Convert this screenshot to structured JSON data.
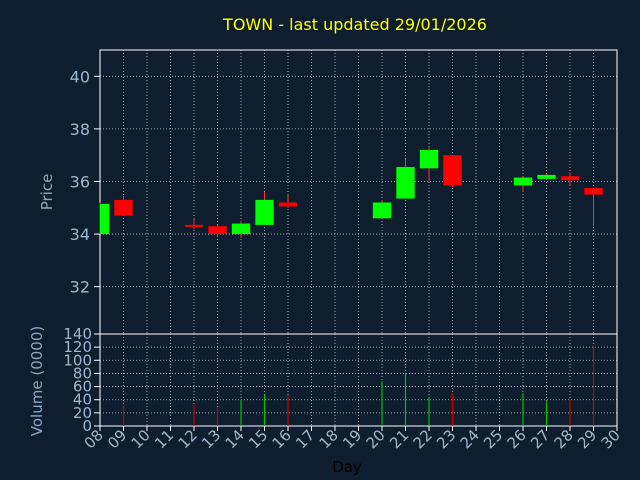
{
  "colors": {
    "background": "#0f1e2e",
    "title": "#ffff00",
    "axis_label": "#8aa6c4",
    "tick_label": "#9fb6d0",
    "axis_line": "#ffffff",
    "grid": "#ffffff",
    "up": "#00ff00",
    "down": "#ff0000",
    "volume_up": "#00c000",
    "volume_down": "#cc0000",
    "wick": "#ff3030"
  },
  "chart_data": [
    {
      "type": "candlestick",
      "title": "TOWN - last updated 29/01/2026",
      "ylabel": "Price",
      "xlabel": "",
      "ylim": [
        30.2,
        41
      ],
      "yticks": [
        32,
        34,
        36,
        38,
        40
      ],
      "x_categories": [
        "08",
        "09",
        "10",
        "11",
        "12",
        "13",
        "14",
        "15",
        "16",
        "17",
        "18",
        "19",
        "20",
        "21",
        "22",
        "23",
        "24",
        "25",
        "26",
        "27",
        "28",
        "29",
        "30"
      ],
      "grid": true,
      "candles": [
        {
          "day": "08",
          "open": 34.0,
          "close": 35.15,
          "high": 35.2,
          "low": 34.0
        },
        {
          "day": "09",
          "open": 35.3,
          "close": 34.7,
          "high": 35.45,
          "low": 34.7
        },
        {
          "day": "12",
          "open": 34.35,
          "close": 34.28,
          "high": 34.6,
          "low": 34.2
        },
        {
          "day": "13",
          "open": 34.3,
          "close": 34.0,
          "high": 34.35,
          "low": 33.9
        },
        {
          "day": "14",
          "open": 34.0,
          "close": 34.4,
          "high": 34.5,
          "low": 33.85
        },
        {
          "day": "15",
          "open": 34.35,
          "close": 35.3,
          "high": 35.6,
          "low": 34.35
        },
        {
          "day": "16",
          "open": 35.2,
          "close": 35.05,
          "high": 35.5,
          "low": 35.0
        },
        {
          "day": "20",
          "open": 34.6,
          "close": 35.2,
          "high": 35.3,
          "low": 34.55
        },
        {
          "day": "21",
          "open": 35.35,
          "close": 36.55,
          "high": 36.85,
          "low": 35.35
        },
        {
          "day": "22",
          "open": 36.5,
          "close": 37.2,
          "high": 37.3,
          "low": 36.0
        },
        {
          "day": "23",
          "open": 37.0,
          "close": 35.85,
          "high": 37.0,
          "low": 35.8
        },
        {
          "day": "26",
          "open": 35.85,
          "close": 36.15,
          "high": 36.2,
          "low": 35.65
        },
        {
          "day": "27",
          "open": 36.1,
          "close": 36.25,
          "high": 36.3,
          "low": 36.05
        },
        {
          "day": "28",
          "open": 36.2,
          "close": 36.05,
          "high": 36.35,
          "low": 35.85
        },
        {
          "day": "29",
          "open": 35.75,
          "close": 35.5,
          "high": 35.75,
          "low": 34.3
        }
      ]
    },
    {
      "type": "bar",
      "ylabel": "Volume (0000)",
      "xlabel": "Day",
      "ylim": [
        0,
        140
      ],
      "yticks": [
        0,
        20,
        40,
        60,
        80,
        100,
        120,
        140
      ],
      "x_categories": [
        "08",
        "09",
        "10",
        "11",
        "12",
        "13",
        "14",
        "15",
        "16",
        "17",
        "18",
        "19",
        "20",
        "21",
        "22",
        "23",
        "24",
        "25",
        "26",
        "27",
        "28",
        "29",
        "30"
      ],
      "grid": true,
      "bars": [
        {
          "day": "08",
          "value": 0,
          "direction": "up"
        },
        {
          "day": "09",
          "value": 30,
          "direction": "down"
        },
        {
          "day": "12",
          "value": 32,
          "direction": "down"
        },
        {
          "day": "13",
          "value": 28,
          "direction": "down"
        },
        {
          "day": "14",
          "value": 40,
          "direction": "up"
        },
        {
          "day": "15",
          "value": 48,
          "direction": "up"
        },
        {
          "day": "16",
          "value": 47,
          "direction": "down"
        },
        {
          "day": "20",
          "value": 68,
          "direction": "up"
        },
        {
          "day": "21",
          "value": 80,
          "direction": "up"
        },
        {
          "day": "22",
          "value": 44,
          "direction": "up"
        },
        {
          "day": "23",
          "value": 50,
          "direction": "down"
        },
        {
          "day": "26",
          "value": 50,
          "direction": "up"
        },
        {
          "day": "27",
          "value": 38,
          "direction": "up"
        },
        {
          "day": "28",
          "value": 40,
          "direction": "down"
        },
        {
          "day": "29",
          "value": 122,
          "direction": "down"
        }
      ]
    }
  ]
}
